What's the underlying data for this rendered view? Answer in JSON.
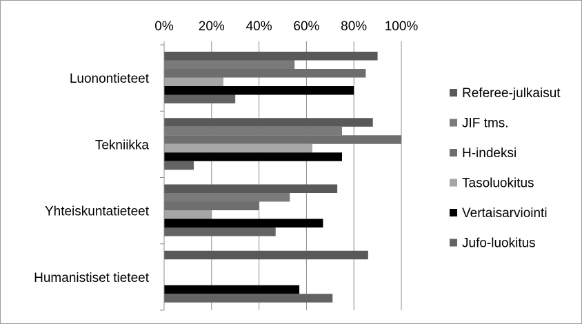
{
  "chart_data": {
    "type": "bar",
    "orientation": "horizontal",
    "x_axis_position": "top",
    "xlim": [
      0,
      100
    ],
    "x_ticks": [
      0,
      20,
      40,
      60,
      80,
      100
    ],
    "x_tick_labels": [
      "0%",
      "20%",
      "40%",
      "60%",
      "80%",
      "100%"
    ],
    "grid": true,
    "legend_position": "right",
    "categories": [
      "Luonontieteet",
      "Tekniikka",
      "Yhteiskuntatieteet",
      "Humanistiset tieteet"
    ],
    "series": [
      {
        "name": "Referee-julkaisut",
        "color": "#595959",
        "values": [
          90,
          88,
          73,
          86
        ]
      },
      {
        "name": "JIF tms.",
        "color": "#7a7a7a",
        "values": [
          55,
          75,
          53,
          0
        ]
      },
      {
        "name": "H-indeksi",
        "color": "#6e6e6e",
        "values": [
          85,
          100,
          40,
          0
        ]
      },
      {
        "name": "Tasoluokitus",
        "color": "#a6a6a6",
        "values": [
          25,
          62.5,
          20,
          0
        ]
      },
      {
        "name": "Vertaisarviointi",
        "color": "#000000",
        "values": [
          80,
          75,
          67,
          57
        ]
      },
      {
        "name": "Jufo-luokitus",
        "color": "#636363",
        "values": [
          30,
          12.5,
          47,
          71
        ]
      }
    ]
  }
}
